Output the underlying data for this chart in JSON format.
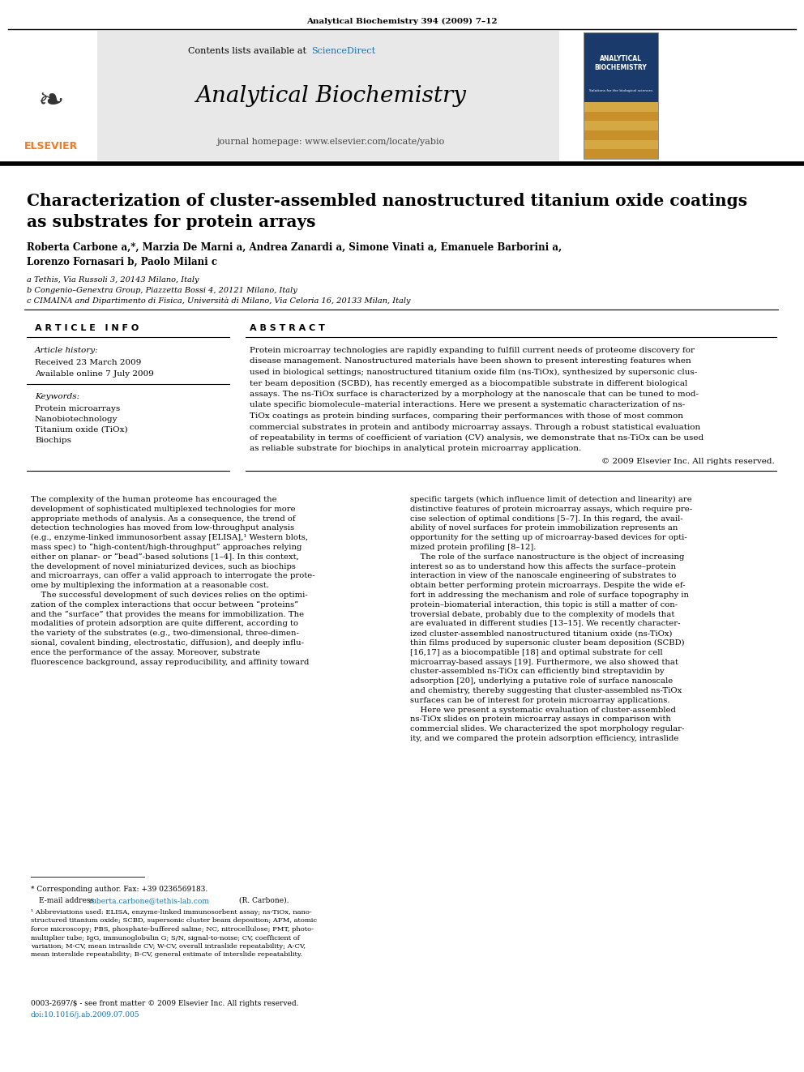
{
  "background_color": "#ffffff",
  "page_width": 9.92,
  "page_height": 13.23,
  "journal_line": "Analytical Biochemistry 394 (2009) 7–12",
  "header_bg": "#e8e8e8",
  "header_contents": "Contents lists available at ScienceDirect",
  "sciencedirect_color": "#1a6fa8",
  "journal_title": "Analytical Biochemistry",
  "journal_homepage": "journal homepage: www.elsevier.com/locate/yabio",
  "elsevier_color": "#f47920",
  "elsevier_text": "ELSEVIER",
  "article_title_line1": "Characterization of cluster-assembled nanostructured titanium oxide coatings",
  "article_title_line2": "as substrates for protein arrays",
  "authors": "Roberta Carbone a,*, Marzia De Marni a, Andrea Zanardi a, Simone Vinati a, Emanuele Barborini a,",
  "authors2": "Lorenzo Fornasari b, Paolo Milani c",
  "affil1": "a Tethis, Via Russoli 3, 20143 Milano, Italy",
  "affil2": "b Congenio–Genextra Group, Piazzetta Bossi 4, 20121 Milano, Italy",
  "affil3": "c CIMAINA and Dipartimento di Fisica, Università di Milano, Via Celoria 16, 20133 Milan, Italy",
  "article_info_header": "A R T I C L E   I N F O",
  "abstract_header": "A B S T R A C T",
  "article_history_label": "Article history:",
  "received": "Received 23 March 2009",
  "available": "Available online 7 July 2009",
  "keywords_label": "Keywords:",
  "keyword1": "Protein microarrays",
  "keyword2": "Nanobiotechnology",
  "keyword3": "Titanium oxide (TiOx)",
  "keyword4": "Biochips",
  "abstract_text": "Protein microarray technologies are rapidly expanding to fulfill current needs of proteome discovery for\ndisease management. Nanostructured materials have been shown to present interesting features when\nused in biological settings; nanostructured titanium oxide film (ns-TiOx), synthesized by supersonic clus-\nter beam deposition (SCBD), has recently emerged as a biocompatible substrate in different biological\nassays. The ns-TiOx surface is characterized by a morphology at the nanoscale that can be tuned to mod-\nulate specific biomolecule–material interactions. Here we present a systematic characterization of ns-\nTiOx coatings as protein binding surfaces, comparing their performances with those of most common\ncommercial substrates in protein and antibody microarray assays. Through a robust statistical evaluation\nof repeatability in terms of coefficient of variation (CV) analysis, we demonstrate that ns-TiOx can be used\nas reliable substrate for biochips in analytical protein microarray application.",
  "copyright": "© 2009 Elsevier Inc. All rights reserved.",
  "body_left_col": "The complexity of the human proteome has encouraged the\ndevelopment of sophisticated multiplexed technologies for more\nappropriate methods of analysis. As a consequence, the trend of\ndetection technologies has moved from low-throughput analysis\n(e.g., enzyme-linked immunosorbent assay [ELISA],¹ Western blots,\nmass spec) to “high-content/high-throughput” approaches relying\neither on planar- or “bead”-based solutions [1–4]. In this context,\nthe development of novel miniaturized devices, such as biochips\nand microarrays, can offer a valid approach to interrogate the prote-\nome by multiplexing the information at a reasonable cost.\n    The successful development of such devices relies on the optimi-\nzation of the complex interactions that occur between “proteins”\nand the “surface” that provides the means for immobilization. The\nmodalities of protein adsorption are quite different, according to\nthe variety of the substrates (e.g., two-dimensional, three-dimen-\nsional, covalent binding, electrostatic, diffusion), and deeply influ-\nence the performance of the assay. Moreover, substrate\nfluorescence background, assay reproducibility, and affinity toward",
  "body_right_col": "specific targets (which influence limit of detection and linearity) are\ndistinctive features of protein microarray assays, which require pre-\ncise selection of optimal conditions [5–7]. In this regard, the avail-\nability of novel surfaces for protein immobilization represents an\nopportunity for the setting up of microarray-based devices for opti-\nmized protein profiling [8–12].\n    The role of the surface nanostructure is the object of increasing\ninterest so as to understand how this affects the surface–protein\ninteraction in view of the nanoscale engineering of substrates to\nobtain better performing protein microarrays. Despite the wide ef-\nfort in addressing the mechanism and role of surface topography in\nprotein–biomaterial interaction, this topic is still a matter of con-\ntroversial debate, probably due to the complexity of models that\nare evaluated in different studies [13–15]. We recently character-\nized cluster-assembled nanostructured titanium oxide (ns-TiOx)\nthin films produced by supersonic cluster beam deposition (SCBD)\n[16,17] as a biocompatible [18] and optimal substrate for cell\nmicroarray-based assays [19]. Furthermore, we also showed that\ncluster-assembled ns-TiOx can efficiently bind streptavidin by\nadsorption [20], underlying a putative role of surface nanoscale\nand chemistry, thereby suggesting that cluster-assembled ns-TiOx\nsurfaces can be of interest for protein microarray applications.\n    Here we present a systematic evaluation of cluster-assembled\nns-TiOx slides on protein microarray assays in comparison with\ncommercial slides. We characterized the spot morphology regular-\nity, and we compared the protein adsorption efficiency, intraslide",
  "footnote_star": "* Corresponding author. Fax: +39 0236569183.",
  "footnote_email_prefix": "E-mail address: ",
  "footnote_email_link": "roberta.carbone@tethis-lab.com",
  "footnote_email_suffix": " (R. Carbone).",
  "footnote_1": "¹ Abbreviations used: ELISA, enzyme-linked immunosorbent assay; ns-TiOx, nano-\nstructured titanium oxide; SCBD, supersonic cluster beam deposition; AFM, atomic\nforce microscopy; PBS, phosphate-buffered saline; NC, nitrocellulose; PMT, photo-\nmultiplier tube; IgG, immunoglobulin G; S/N, signal-to-noise; CV, coefficient of\nvariation; M-CV, mean intraslide CV; W-CV, overall intraslide repeatability; A-CV,\nmean interslide repeatability; B-CV, general estimate of interslide repeatability.",
  "bottom_line1": "0003-2697/$ - see front matter © 2009 Elsevier Inc. All rights reserved.",
  "bottom_line2": "doi:10.1016/j.ab.2009.07.005",
  "link_color": "#1a6fa8",
  "cover_blue": "#1a3a6b",
  "cover_gold": "#c8902a",
  "cover_gold_light": "#d4a843"
}
